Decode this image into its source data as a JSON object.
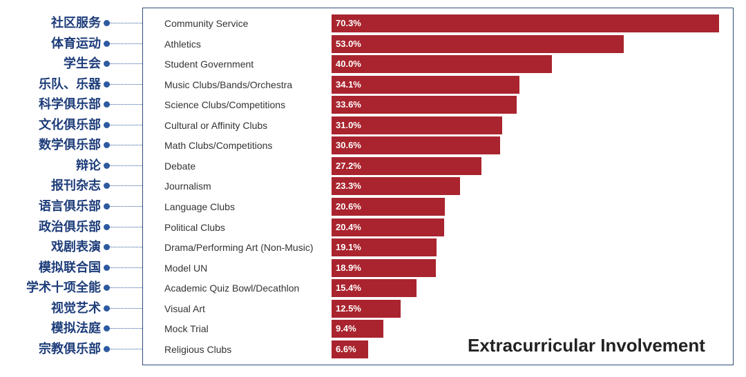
{
  "chart_data": {
    "type": "bar",
    "orientation": "horizontal",
    "title": "Extracurricular Involvement",
    "xlim": [
      0,
      70.3
    ],
    "categories": [
      "Community Service",
      "Athletics",
      "Student Government",
      "Music Clubs/Bands/Orchestra",
      "Science Clubs/Competitions",
      "Cultural or Affinity Clubs",
      "Math Clubs/Competitions",
      "Debate",
      "Journalism",
      "Language Clubs",
      "Political Clubs",
      "Drama/Performing Art (Non-Music)",
      "Model UN",
      "Academic Quiz Bowl/Decathlon",
      "Visual Art",
      "Mock Trial",
      "Religious Clubs"
    ],
    "category_labels_cn": [
      "社区服务",
      "体育运动",
      "学生会",
      "乐队、乐器",
      "科学俱乐部",
      "文化俱乐部",
      "数学俱乐部",
      "辩论",
      "报刊杂志",
      "语言俱乐部",
      "政治俱乐部",
      "戏剧表演",
      "模拟联合国",
      "学术十项全能",
      "视觉艺术",
      "模拟法庭",
      "宗教俱乐部"
    ],
    "values": [
      70.3,
      53.0,
      40.0,
      34.1,
      33.6,
      31.0,
      30.6,
      27.2,
      23.3,
      20.6,
      20.4,
      19.1,
      18.9,
      15.4,
      12.5,
      9.4,
      6.6
    ],
    "value_labels": [
      "70.3%",
      "53.0%",
      "40.0%",
      "34.1%",
      "33.6%",
      "31.0%",
      "30.6%",
      "27.2%",
      "23.3%",
      "20.6%",
      "20.4%",
      "19.1%",
      "18.9%",
      "15.4%",
      "12.5%",
      "9.4%",
      "6.6%"
    ],
    "bar_color": "#a9242e",
    "annotation_color": "#1d3c79"
  }
}
